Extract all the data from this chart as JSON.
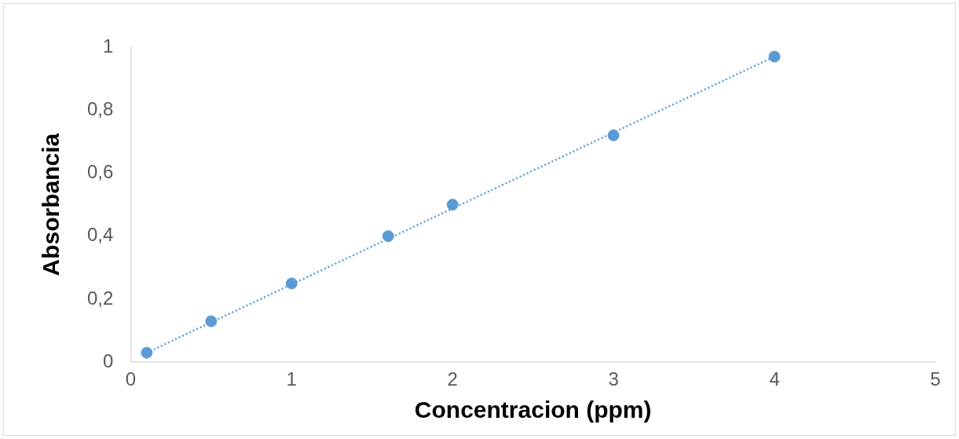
{
  "chart_data": {
    "type": "scatter",
    "xlabel": "Concentracion (ppm)",
    "ylabel": "Absorbancia",
    "xlim": [
      0,
      5
    ],
    "xticks": [
      0,
      1,
      2,
      3,
      4,
      5
    ],
    "ylim": [
      0,
      1
    ],
    "yticks": [
      0,
      {
        "value": 0.2,
        "label": "0,2"
      },
      {
        "value": 0.4,
        "label": "0,4"
      },
      {
        "value": 0.6,
        "label": "0,6"
      },
      {
        "value": 0.8,
        "label": "0,8"
      },
      1
    ],
    "grid": false,
    "legend": false,
    "marker": "circle",
    "series": [
      {
        "color": "#5b9bd5",
        "x": [
          0.1,
          0.5,
          1,
          1.6,
          2,
          3,
          4
        ],
        "values": [
          0.03,
          0.13,
          0.25,
          0.4,
          0.5,
          0.72,
          0.97
        ]
      },
      {
        "type": "line",
        "color": "#5b9bd5",
        "x": [
          0.1,
          4
        ],
        "values": [
          0.03,
          0.97
        ],
        "marker": "none",
        "line_style": "dotted"
      }
    ]
  }
}
